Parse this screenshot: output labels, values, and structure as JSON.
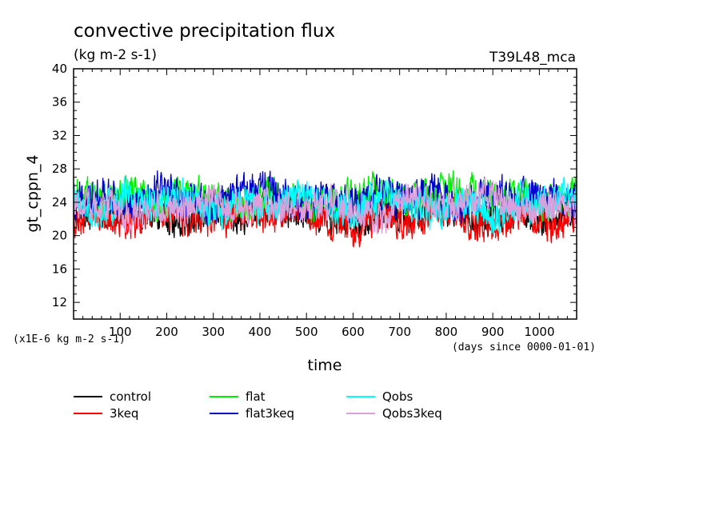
{
  "chart_data": {
    "type": "line",
    "title": "convective precipitation flux",
    "units_label": "(kg m-2 s-1)",
    "model_label": "T39L48_mca",
    "ylabel": "gt_cppn_4",
    "xlabel": "time",
    "scale_note": "(x1E-6 kg m-2 s-1)",
    "time_note": "(days since 0000-01-01)",
    "xlim": [
      0,
      1080
    ],
    "ylim": [
      10,
      40
    ],
    "xticks": [
      100,
      200,
      300,
      400,
      500,
      600,
      700,
      800,
      900,
      1000
    ],
    "yticks": [
      12,
      16,
      20,
      24,
      28,
      32,
      36,
      40
    ],
    "grid": false,
    "legend_position": "bottom",
    "series": [
      {
        "name": "control",
        "color": "#000000",
        "mean": 23.0,
        "amp": 2.4,
        "x": [
          0,
          60,
          120,
          180,
          240,
          300,
          360,
          420,
          480,
          540,
          600,
          660,
          720,
          780,
          840,
          900,
          960,
          1020,
          1080
        ],
        "y": [
          22.5,
          21.0,
          24.5,
          20.8,
          18.2,
          23.5,
          20.0,
          24.0,
          22.0,
          20.5,
          18.5,
          23.0,
          20.2,
          24.2,
          21.5,
          20.0,
          23.5,
          19.5,
          22.5
        ]
      },
      {
        "name": "3keq",
        "color": "#ff0000",
        "mean": 22.8,
        "amp": 2.6,
        "x": [
          0,
          60,
          120,
          180,
          240,
          300,
          360,
          420,
          480,
          540,
          600,
          660,
          720,
          780,
          840,
          900,
          960,
          1020,
          1080
        ],
        "y": [
          20.5,
          23.5,
          19.0,
          24.0,
          21.0,
          19.5,
          23.5,
          21.0,
          24.0,
          20.5,
          17.0,
          23.0,
          18.0,
          24.5,
          21.0,
          18.5,
          23.5,
          19.0,
          22.0
        ]
      },
      {
        "name": "flat",
        "color": "#00ee00",
        "mean": 24.3,
        "amp": 2.4,
        "x": [
          0,
          60,
          120,
          180,
          240,
          300,
          360,
          420,
          480,
          540,
          600,
          660,
          720,
          780,
          840,
          900,
          960,
          1020,
          1080
        ],
        "y": [
          27.5,
          24.0,
          28.0,
          22.5,
          27.0,
          25.0,
          21.5,
          27.5,
          24.0,
          22.0,
          26.5,
          29.0,
          23.0,
          27.5,
          28.5,
          24.0,
          26.5,
          22.5,
          27.0
        ]
      },
      {
        "name": "flat3keq",
        "color": "#0000cc",
        "mean": 24.0,
        "amp": 2.6,
        "x": [
          0,
          60,
          120,
          180,
          240,
          300,
          360,
          420,
          480,
          540,
          600,
          660,
          720,
          780,
          840,
          900,
          960,
          1020,
          1080
        ],
        "y": [
          24.0,
          27.0,
          21.5,
          29.0,
          24.5,
          22.0,
          27.5,
          28.5,
          23.0,
          26.5,
          22.5,
          27.0,
          24.0,
          28.0,
          22.0,
          27.5,
          25.0,
          28.0,
          22.5
        ]
      },
      {
        "name": "Qobs",
        "color": "#00ffff",
        "mean": 23.8,
        "amp": 2.5,
        "x": [
          0,
          60,
          120,
          180,
          240,
          300,
          360,
          420,
          480,
          540,
          600,
          660,
          720,
          780,
          840,
          900,
          960,
          1020,
          1080
        ],
        "y": [
          24.5,
          21.0,
          27.5,
          23.0,
          26.5,
          20.5,
          25.0,
          22.0,
          27.0,
          24.5,
          20.5,
          26.0,
          23.5,
          21.0,
          26.5,
          19.5,
          25.0,
          23.0,
          28.0
        ]
      },
      {
        "name": "Qobs3keq",
        "color": "#dda0dd",
        "mean": 23.5,
        "amp": 2.3,
        "x": [
          0,
          60,
          120,
          180,
          240,
          300,
          360,
          420,
          480,
          540,
          600,
          660,
          720,
          780,
          840,
          900,
          960,
          1020,
          1080
        ],
        "y": [
          23.0,
          25.5,
          19.5,
          24.0,
          22.5,
          26.0,
          21.0,
          24.5,
          22.0,
          25.0,
          23.5,
          18.5,
          28.5,
          22.0,
          25.5,
          28.5,
          21.5,
          24.5,
          23.0
        ]
      }
    ]
  }
}
